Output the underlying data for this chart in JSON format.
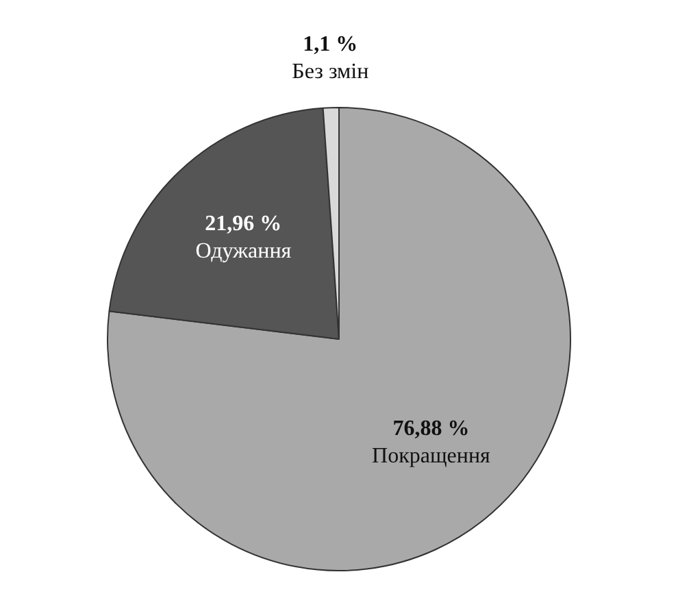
{
  "chart_data": {
    "type": "pie",
    "categories": [
      "Покращення",
      "Одужання",
      "Без змін"
    ],
    "values": [
      76.88,
      21.96,
      1.1
    ],
    "value_labels": [
      "76,88 %",
      "21,96 %",
      "1,1 %"
    ],
    "colors": [
      "#a9a9a9",
      "#555555",
      "#d9d9d9"
    ]
  }
}
